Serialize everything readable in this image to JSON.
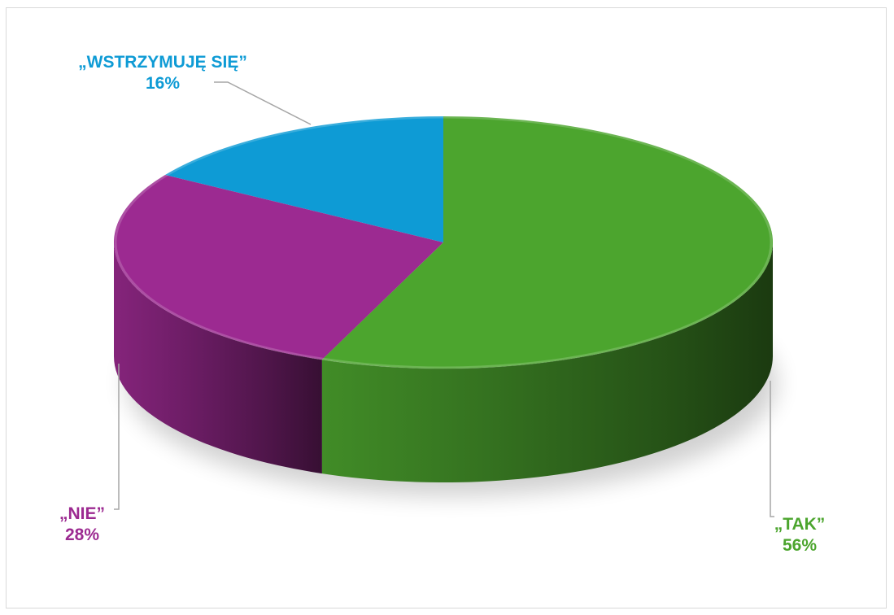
{
  "chart_data": {
    "type": "pie",
    "variant": "3d",
    "title": "",
    "categories": [
      "„WSTRZYMUJĘ SIĘ”",
      "„NIE”",
      "„TAK”"
    ],
    "values": [
      16,
      28,
      56
    ],
    "value_labels": [
      "16%",
      "28%",
      "56%"
    ],
    "colors": [
      "#0e9bd5",
      "#9c2a91",
      "#4ca52e"
    ],
    "legend": "none",
    "data_labels": "outside with leader lines"
  }
}
